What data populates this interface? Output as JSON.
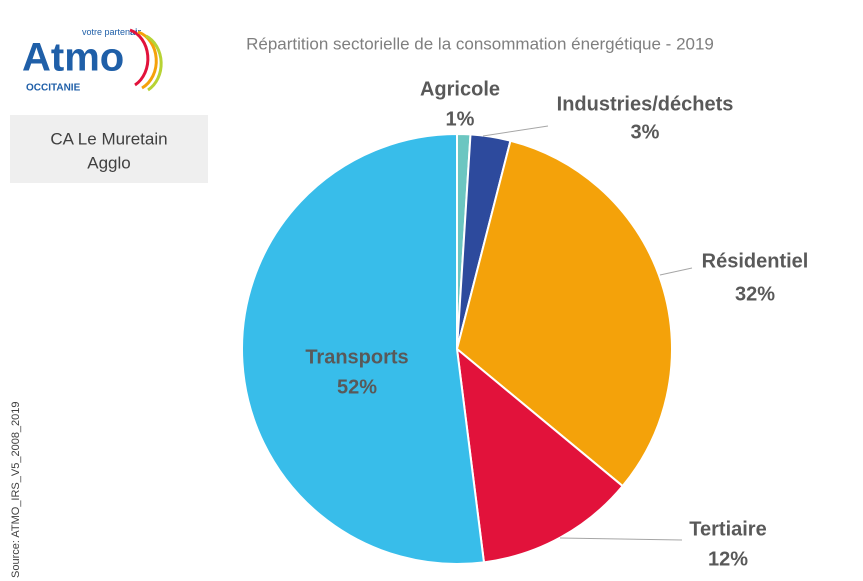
{
  "chart_data": {
    "type": "pie",
    "title": "Répartition sectorielle de la consommation énergétique - 2019",
    "territory": [
      "CA Le Muretain",
      "Agglo"
    ],
    "source": "Source: ATMO_IRS_V5_2008_2019",
    "logo": {
      "name": "Atmo",
      "region": "OCCITANIE",
      "tagline": [
        "votre parten",
        "air"
      ]
    },
    "categories": [
      "Agricole",
      "Industries/déchets",
      "Résidentiel",
      "Tertiaire",
      "Transports"
    ],
    "values": [
      1,
      3,
      32,
      12,
      52
    ],
    "value_labels": [
      "1%",
      "3%",
      "32%",
      "12%",
      "52%"
    ],
    "colors": [
      "#6cc6c1",
      "#2d4a9d",
      "#f4a20a",
      "#e2123b",
      "#38bdea"
    ]
  }
}
